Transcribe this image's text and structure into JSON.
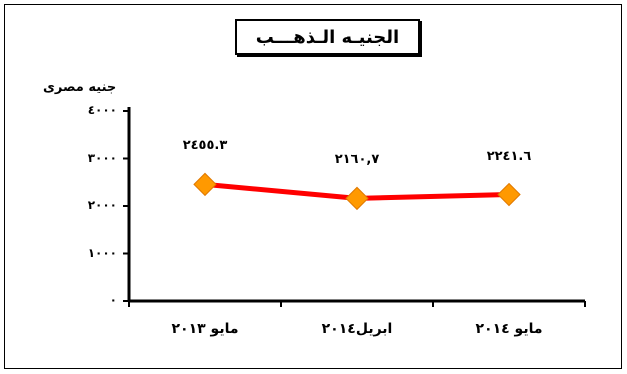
{
  "chart_data": {
    "type": "line",
    "title": "الجنيـه الـذهـــب",
    "ylabel": "جنيه مصرى",
    "categories": [
      "مايو ٢٠١٣",
      "ابريل٢٠١٤",
      "مايو ٢٠١٤"
    ],
    "series": [
      {
        "values": [
          2455.3,
          2160.7,
          2241.6
        ],
        "labels": [
          "٢٤٥٥.٣",
          "٢١٦٠,٧",
          "٢٢٤١.٦"
        ]
      }
    ],
    "ylim": [
      0,
      4000
    ],
    "yticks": [
      {
        "value": 0,
        "label": "٠"
      },
      {
        "value": 1000,
        "label": "١٠٠٠"
      },
      {
        "value": 2000,
        "label": "٢٠٠٠"
      },
      {
        "value": 3000,
        "label": "٣٠٠٠"
      },
      {
        "value": 4000,
        "label": "٤٠٠٠"
      }
    ],
    "line_color": "#ff0000",
    "marker_color": "#ff9900",
    "marker_shape": "diamond",
    "grid": false,
    "legend": "none"
  }
}
